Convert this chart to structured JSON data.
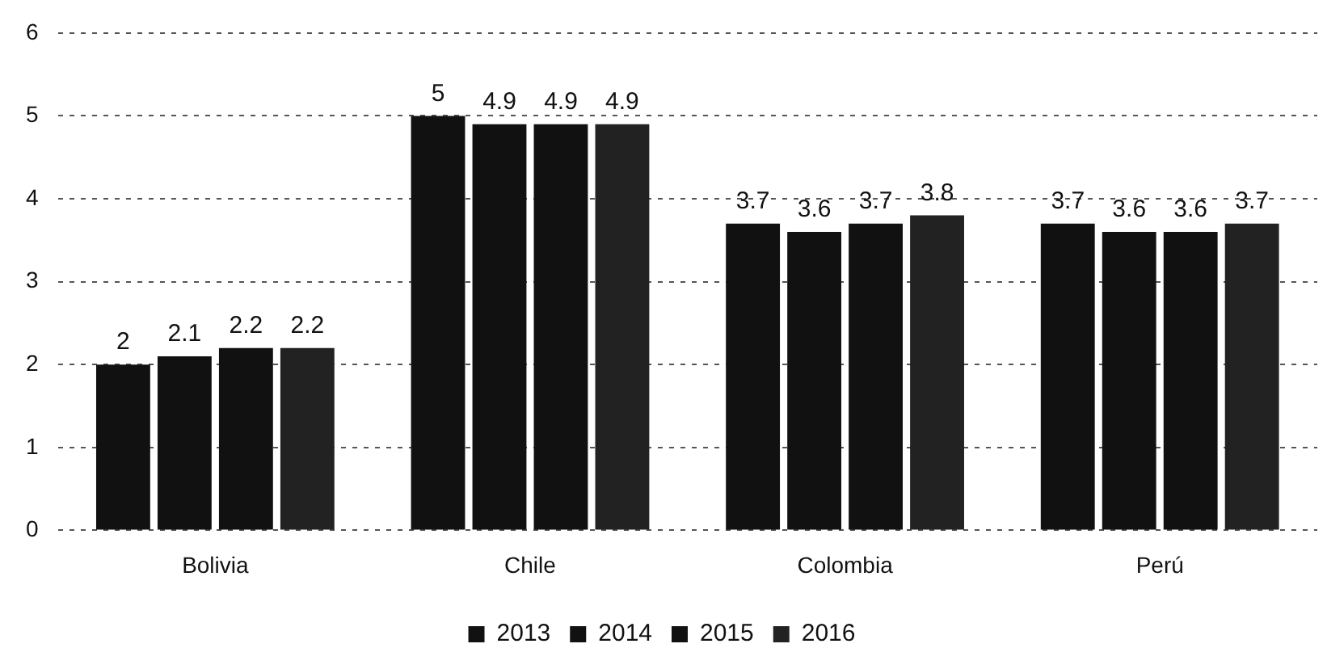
{
  "chart_data": {
    "type": "bar",
    "categories": [
      "Bolivia",
      "Chile",
      "Colombia",
      "Perú"
    ],
    "series": [
      {
        "name": "2013",
        "color": "#111111",
        "values": [
          2,
          5,
          3.7,
          3.7
        ]
      },
      {
        "name": "2014",
        "color": "#111111",
        "values": [
          2.1,
          4.9,
          3.6,
          3.6
        ]
      },
      {
        "name": "2015",
        "color": "#111111",
        "values": [
          2.2,
          4.9,
          3.7,
          3.6
        ]
      },
      {
        "name": "2016",
        "color": "#222222",
        "values": [
          2.2,
          4.9,
          3.8,
          3.7
        ]
      }
    ],
    "ylim": [
      0,
      6
    ],
    "yticks": [
      0,
      1,
      2,
      3,
      4,
      5,
      6
    ],
    "grid": "y",
    "legend": "bottom",
    "data_labels": true
  }
}
